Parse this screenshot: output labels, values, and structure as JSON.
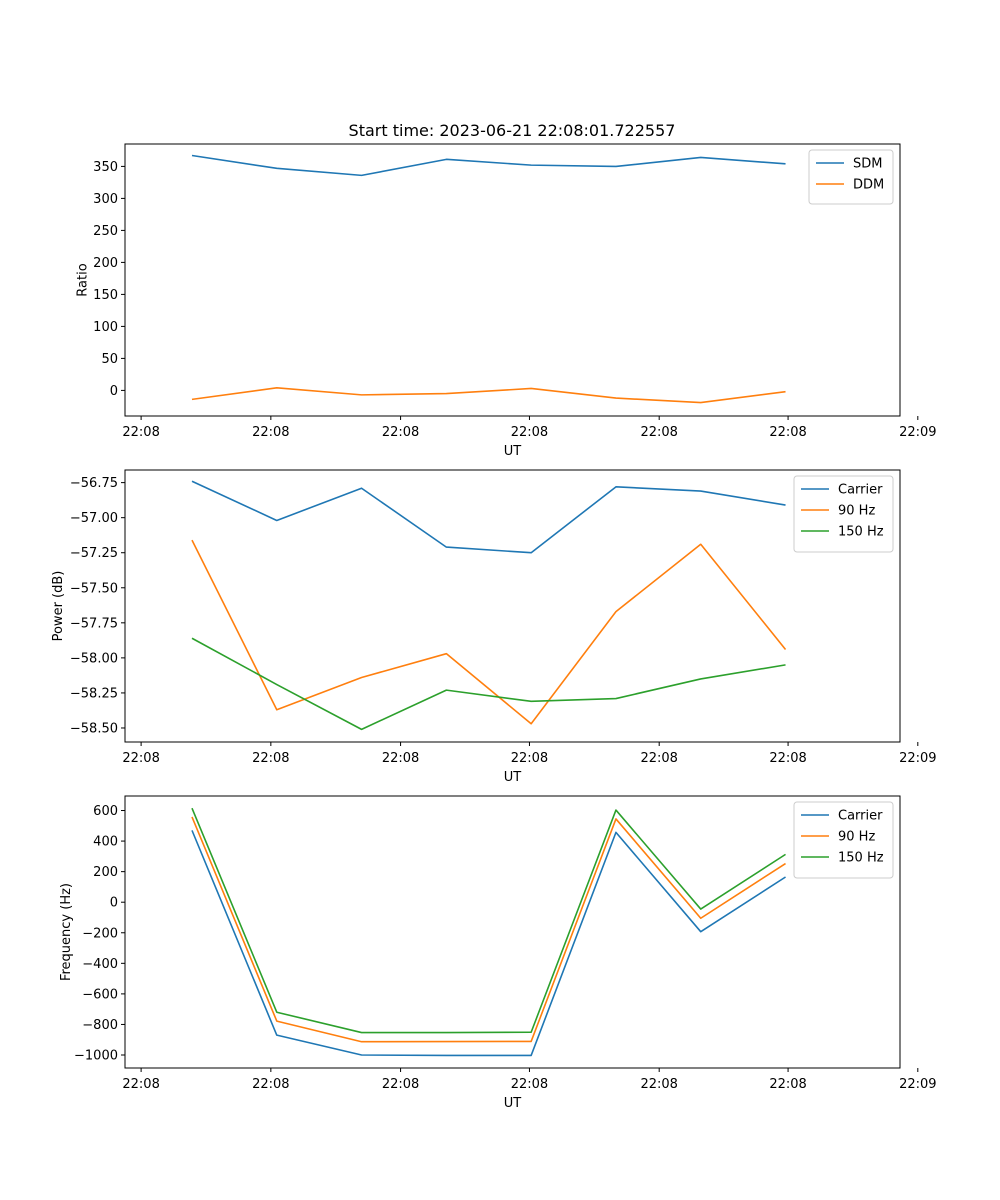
{
  "figure_title": "Start time: 2023-06-21 22:08:01.722557",
  "x_tick_labels": [
    "22:08",
    "22:08",
    "22:08",
    "22:08",
    "22:08",
    "22:08",
    "22:09"
  ],
  "colors": {
    "blue": "#1f77b4",
    "orange": "#ff7f0e",
    "green": "#2ca02c"
  },
  "chart_data": [
    {
      "type": "line",
      "xlabel": "UT",
      "ylabel": "Ratio",
      "ylim": [
        -40,
        385
      ],
      "yticks": [
        0,
        50,
        100,
        150,
        200,
        250,
        300,
        350
      ],
      "x": [
        1,
        2,
        3,
        4,
        5,
        6,
        7,
        8
      ],
      "xlim": [
        0.21,
        9.35
      ],
      "xticks": [
        0.4,
        1.93,
        3.46,
        4.98,
        6.51,
        8.03,
        9.56
      ],
      "legend_position": "top-right",
      "series": [
        {
          "name": "SDM",
          "color": "#1f77b4",
          "values": [
            367,
            347,
            336,
            361,
            352,
            350,
            364,
            354
          ]
        },
        {
          "name": "DDM",
          "color": "#ff7f0e",
          "values": [
            -14,
            4,
            -7,
            -5,
            3,
            -12,
            -19,
            -2
          ]
        }
      ]
    },
    {
      "type": "line",
      "xlabel": "UT",
      "ylabel": "Power (dB)",
      "ylim": [
        -58.6,
        -56.66
      ],
      "yticks": [
        -58.5,
        -58.25,
        -58.0,
        -57.75,
        -57.5,
        -57.25,
        -57.0,
        -56.75
      ],
      "ytick_labels": [
        "−58.50",
        "−58.25",
        "−58.00",
        "−57.75",
        "−57.50",
        "−57.25",
        "−57.00",
        "−56.75"
      ],
      "x": [
        1,
        2,
        3,
        4,
        5,
        6,
        7,
        8
      ],
      "xlim": [
        0.21,
        9.35
      ],
      "xticks": [
        0.4,
        1.93,
        3.46,
        4.98,
        6.51,
        8.03,
        9.56
      ],
      "legend_position": "top-right",
      "series": [
        {
          "name": "Carrier",
          "color": "#1f77b4",
          "values": [
            -56.74,
            -57.02,
            -56.79,
            -57.21,
            -57.25,
            -56.78,
            -56.81,
            -56.91
          ]
        },
        {
          "name": "90 Hz",
          "color": "#ff7f0e",
          "values": [
            -57.16,
            -58.37,
            -58.14,
            -57.97,
            -58.47,
            -57.67,
            -57.19,
            -57.94
          ]
        },
        {
          "name": "150 Hz",
          "color": "#2ca02c",
          "values": [
            -57.86,
            -58.19,
            -58.51,
            -58.23,
            -58.31,
            -58.29,
            -58.15,
            -58.05
          ]
        }
      ]
    },
    {
      "type": "line",
      "xlabel": "UT",
      "ylabel": "Frequency (Hz)",
      "ylim": [
        -1085,
        695
      ],
      "yticks": [
        -1000,
        -800,
        -600,
        -400,
        -200,
        0,
        200,
        400,
        600
      ],
      "ytick_labels": [
        "−1000",
        "−800",
        "−600",
        "−400",
        "−200",
        "0",
        "200",
        "400",
        "600"
      ],
      "x": [
        1,
        2,
        3,
        4,
        5,
        6,
        7,
        8
      ],
      "xlim": [
        0.21,
        9.35
      ],
      "xticks": [
        0.4,
        1.93,
        3.46,
        4.98,
        6.51,
        8.03,
        9.56
      ],
      "legend_position": "top-right",
      "series": [
        {
          "name": "Carrier",
          "color": "#1f77b4",
          "values": [
            470,
            -870,
            -1000,
            -1003,
            -1003,
            457,
            -193,
            165
          ]
        },
        {
          "name": "90 Hz",
          "color": "#ff7f0e",
          "values": [
            558,
            -778,
            -913,
            -912,
            -911,
            545,
            -105,
            253
          ]
        },
        {
          "name": "150 Hz",
          "color": "#2ca02c",
          "values": [
            615,
            -720,
            -853,
            -853,
            -851,
            603,
            -45,
            313
          ]
        }
      ]
    }
  ]
}
